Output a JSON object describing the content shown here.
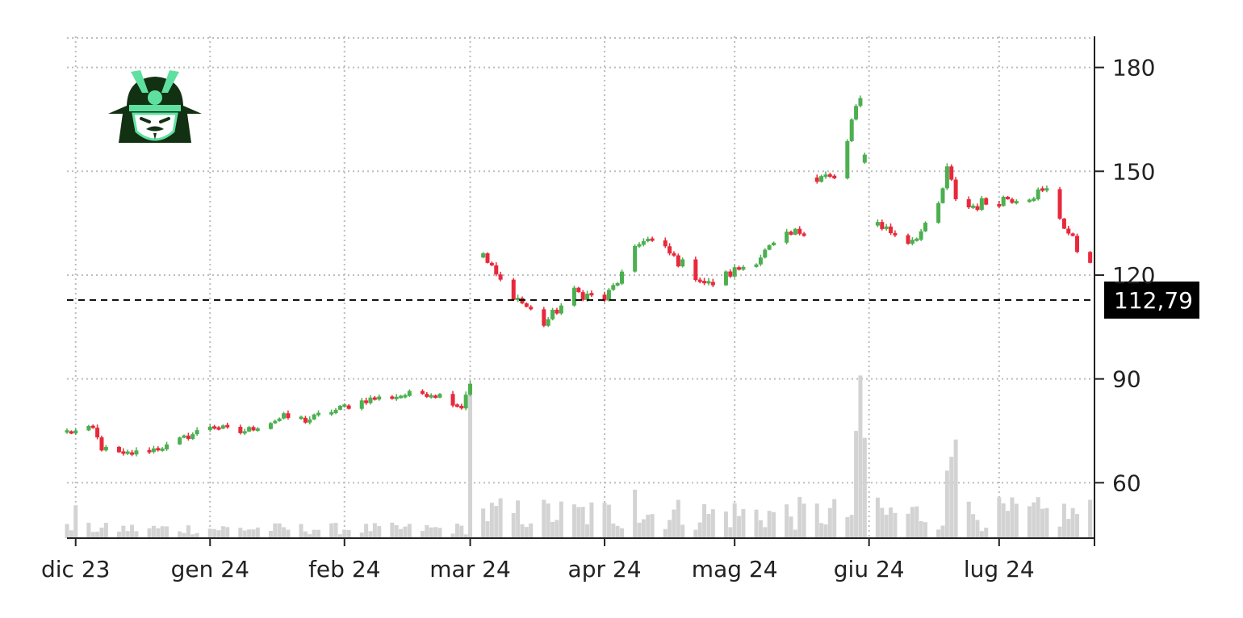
{
  "chart_data": {
    "type": "candlestick",
    "x_range": [
      "2023-11-29",
      "2024-07-23"
    ],
    "y_range": [
      44,
      189
    ],
    "grid": true,
    "grid_style": "dotted",
    "y_axis_side": "right",
    "x_ticks": [
      {
        "date": "2023-12-01",
        "label": "dic 23"
      },
      {
        "date": "2024-01-01",
        "label": "gen 24"
      },
      {
        "date": "2024-02-01",
        "label": "feb 24"
      },
      {
        "date": "2024-03-01",
        "label": "mar 24"
      },
      {
        "date": "2024-04-01",
        "label": "apr 24"
      },
      {
        "date": "2024-05-01",
        "label": "mag 24"
      },
      {
        "date": "2024-06-01",
        "label": "giu 24"
      },
      {
        "date": "2024-07-01",
        "label": "lug 24"
      }
    ],
    "y_ticks": [
      60,
      90,
      120,
      150,
      180
    ],
    "y_tick_labels": [
      "60",
      "90",
      "120",
      "150",
      "180"
    ],
    "reference_line": {
      "value": 112.79,
      "label": "112,79",
      "style": "dashed",
      "color": "#000000"
    },
    "colors": {
      "up": "#4caf50",
      "down": "#e8293b",
      "volume": "#d3d3d3",
      "grid": "#bdbdbd",
      "axis": "#222222"
    },
    "logo": "samurai-helmet-icon",
    "waypoints": [
      [
        "2023-11-29",
        74.5
      ],
      [
        "2023-12-05",
        75.5
      ],
      [
        "2023-12-07",
        70.0
      ],
      [
        "2023-12-12",
        68.0
      ],
      [
        "2023-12-22",
        70.5
      ],
      [
        "2024-01-01",
        76.5
      ],
      [
        "2024-01-08",
        74.5
      ],
      [
        "2024-01-18",
        79.0
      ],
      [
        "2024-01-23",
        78.0
      ],
      [
        "2024-02-06",
        84.0
      ],
      [
        "2024-02-20",
        86.0
      ],
      [
        "2024-02-24",
        85.0
      ],
      [
        "2024-02-28",
        82.0
      ],
      [
        "2024-03-02",
        93.0
      ],
      [
        "2024-03-03",
        127.0
      ],
      [
        "2024-03-08",
        118.0
      ],
      [
        "2024-03-18",
        106.0
      ],
      [
        "2024-03-25",
        115.0
      ],
      [
        "2024-04-01",
        113.0
      ],
      [
        "2024-04-05",
        120.0
      ],
      [
        "2024-04-10",
        131.0
      ],
      [
        "2024-04-15",
        127.0
      ],
      [
        "2024-04-25",
        117.0
      ],
      [
        "2024-05-05",
        124.0
      ],
      [
        "2024-05-12",
        130.0
      ],
      [
        "2024-05-18",
        134.0
      ],
      [
        "2024-05-19",
        148.0
      ],
      [
        "2024-05-25",
        148.0
      ],
      [
        "2024-05-30",
        173.0
      ],
      [
        "2024-06-01",
        136.0
      ],
      [
        "2024-06-10",
        130.0
      ],
      [
        "2024-06-16",
        135.0
      ],
      [
        "2024-06-19",
        150.0
      ],
      [
        "2024-06-22",
        139.0
      ],
      [
        "2024-07-01",
        142.0
      ],
      [
        "2024-07-12",
        144.0
      ],
      [
        "2024-07-20",
        125.0
      ],
      [
        "2024-07-23",
        125.0
      ]
    ],
    "volume_spikes": [
      {
        "date": "2023-12-01",
        "value": 9.5
      },
      {
        "date": "2024-03-01",
        "value": 44.0
      },
      {
        "date": "2024-03-02",
        "value": 17.0
      },
      {
        "date": "2024-04-08",
        "value": 14.0
      },
      {
        "date": "2024-05-29",
        "value": 31.0
      },
      {
        "date": "2024-05-30",
        "value": 47.0
      },
      {
        "date": "2024-05-31",
        "value": 29.0
      },
      {
        "date": "2024-06-19",
        "value": 19.5
      },
      {
        "date": "2024-06-20",
        "value": 23.5
      },
      {
        "date": "2024-06-21",
        "value": 28.5
      }
    ]
  }
}
